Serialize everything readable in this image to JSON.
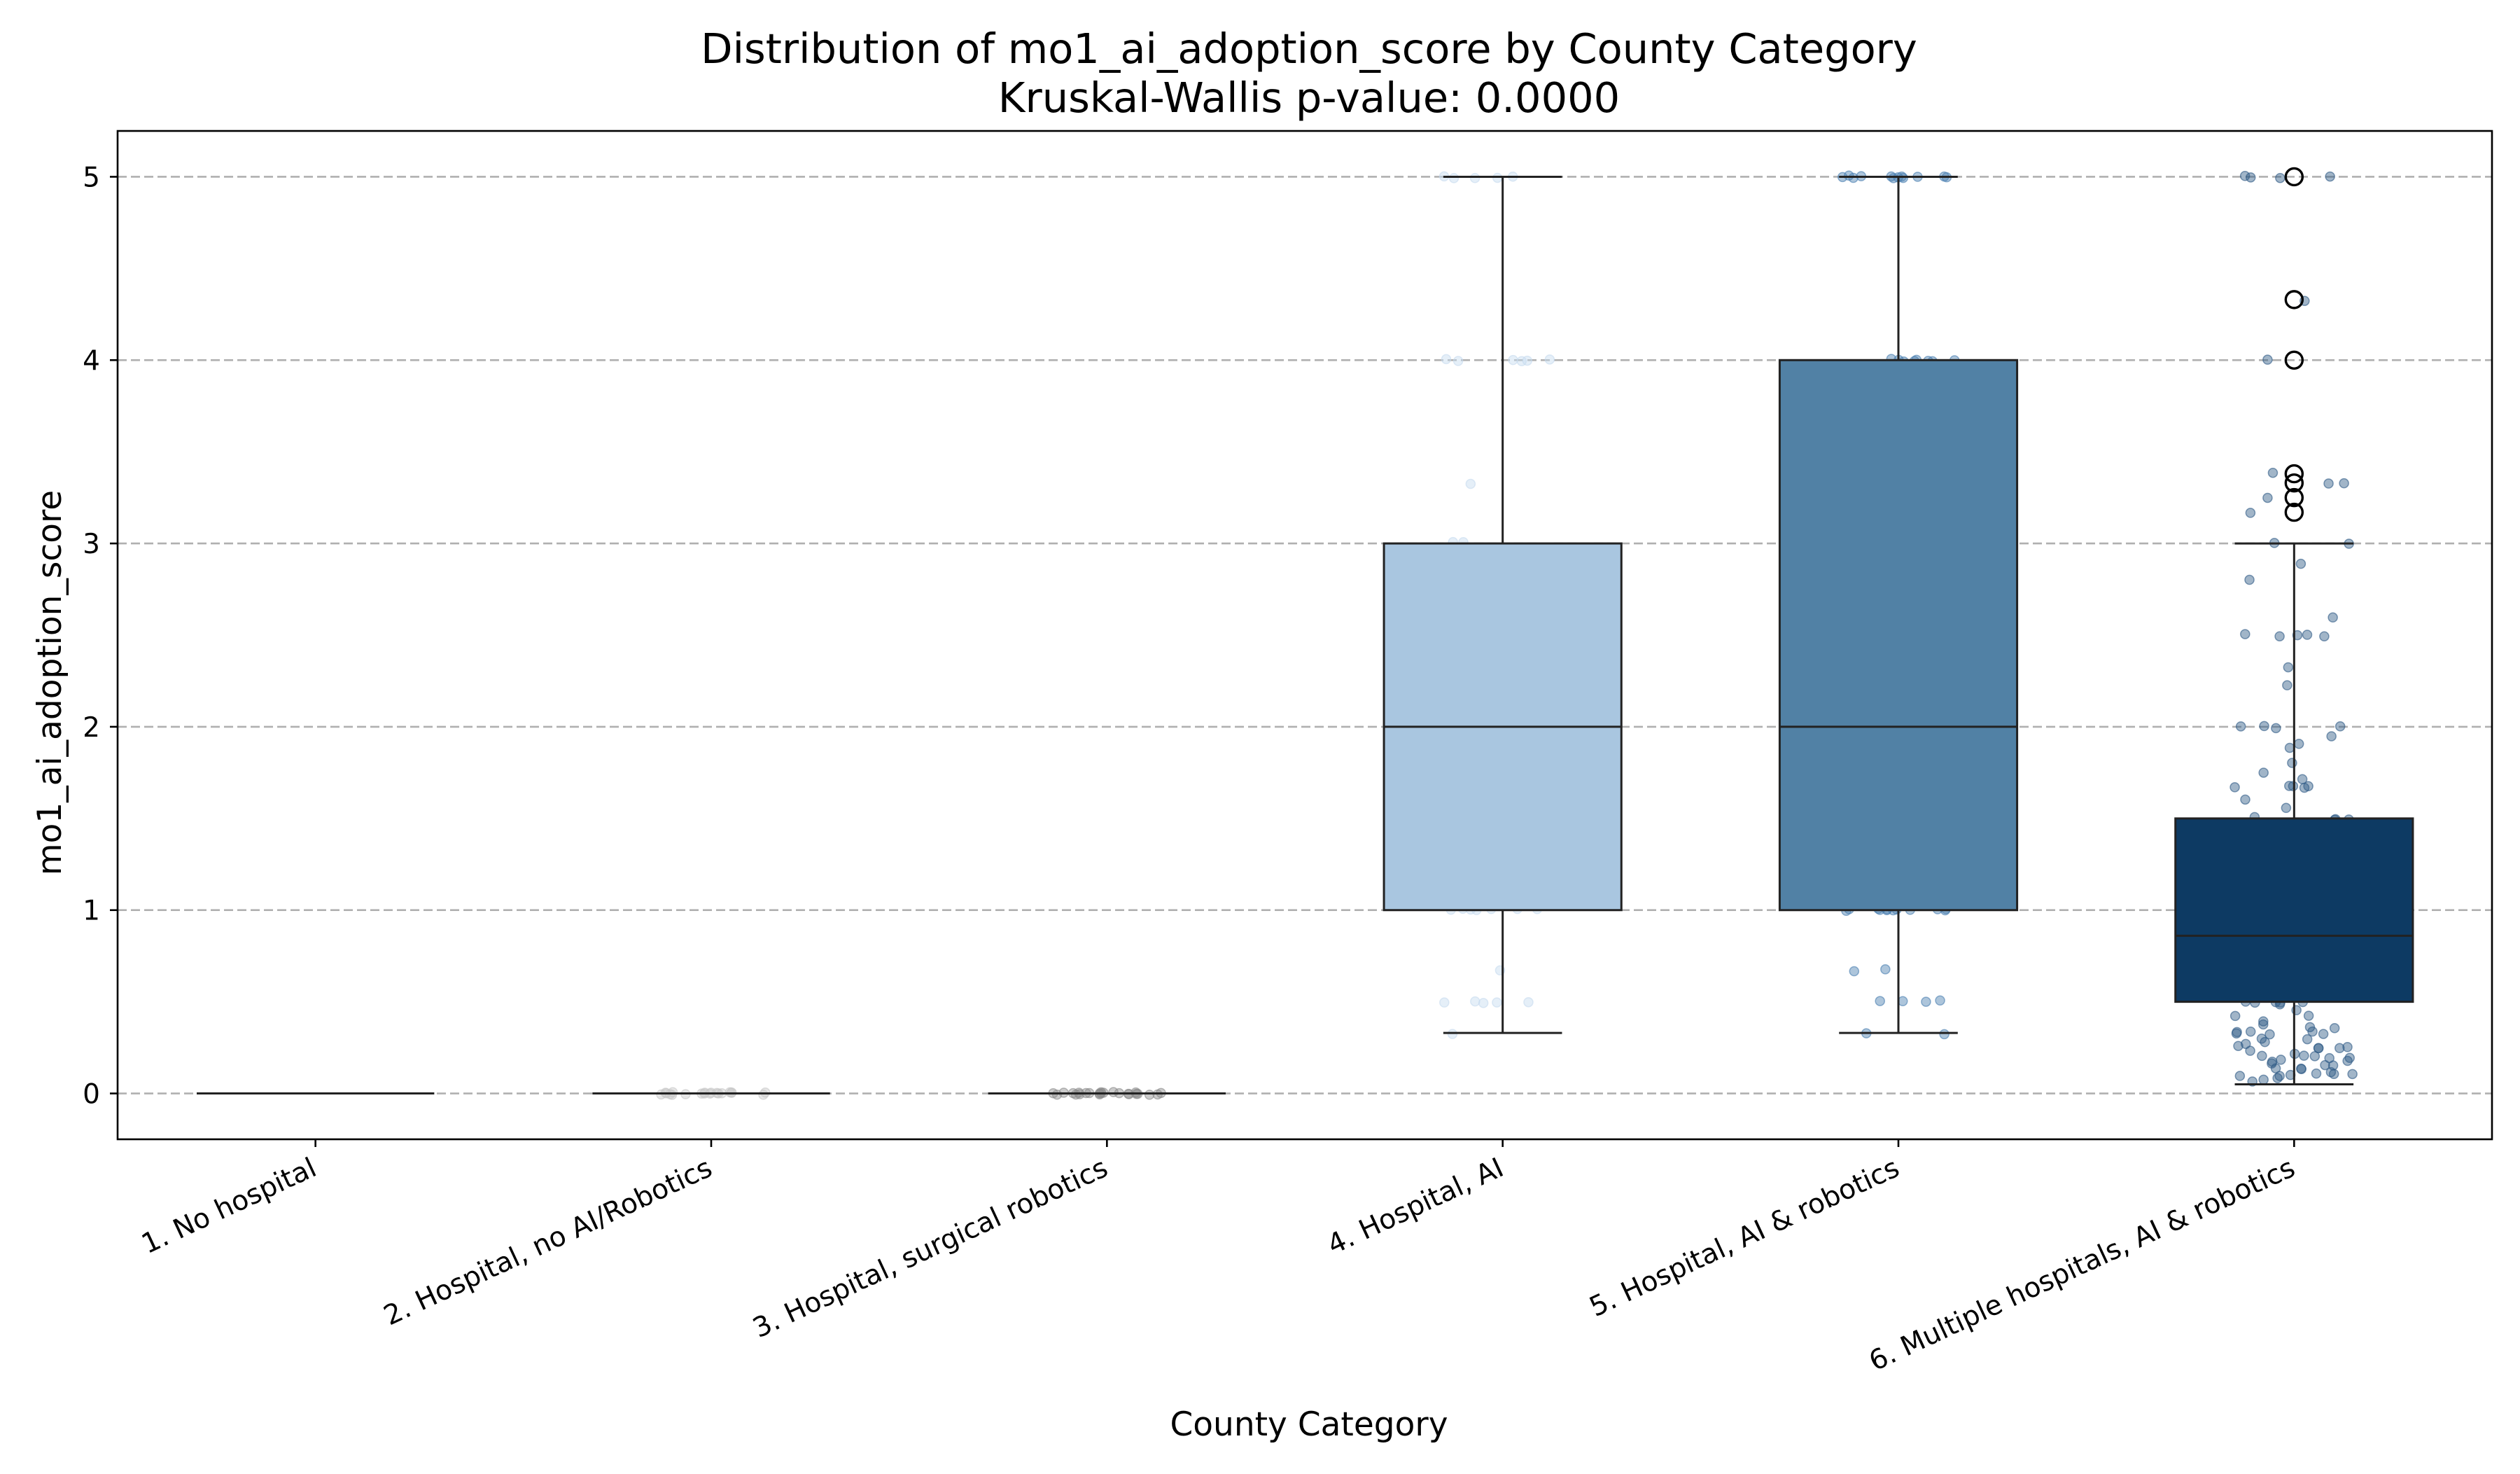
{
  "chart_data": {
    "type": "box",
    "title": "Distribution of mo1_ai_adoption_score by County Category",
    "subtitle": "Kruskal-Wallis p-value: 0.0000",
    "xlabel": "County Category",
    "ylabel": "mo1_ai_adoption_score",
    "ylim": [
      -0.25,
      5.25
    ],
    "yticks": [
      "0",
      "1",
      "2",
      "3",
      "4",
      "5"
    ],
    "grid": "horizontal dashed",
    "categories": [
      "1. No hospital",
      "2. Hospital, no AI/Robotics",
      "3. Hospital, surgical robotics",
      "4. Hospital, AI",
      "5. Hospital, AI & robotics",
      "6. Multiple hospitals, AI & robotics"
    ],
    "colors": [
      "#f7f7f7",
      "#cccccc",
      "#969696",
      "#a9c6e0",
      "#5181a5",
      "#0d3a63"
    ],
    "boxes": [
      {
        "whisker_low": 0,
        "q1": 0,
        "median": 0,
        "q3": 0,
        "whisker_high": 0,
        "outliers": []
      },
      {
        "whisker_low": 0,
        "q1": 0,
        "median": 0,
        "q3": 0,
        "whisker_high": 0,
        "outliers": []
      },
      {
        "whisker_low": 0,
        "q1": 0,
        "median": 0,
        "q3": 0,
        "whisker_high": 0,
        "outliers": []
      },
      {
        "whisker_low": 0.33,
        "q1": 1.0,
        "median": 2.0,
        "q3": 3.0,
        "whisker_high": 5.0,
        "outliers": []
      },
      {
        "whisker_low": 0.33,
        "q1": 1.0,
        "median": 2.0,
        "q3": 4.0,
        "whisker_high": 5.0,
        "outliers": []
      },
      {
        "whisker_low": 0.05,
        "q1": 0.5,
        "median": 0.86,
        "q3": 1.5,
        "whisker_high": 3.0,
        "outliers": [
          5.0,
          4.33,
          4.0,
          3.38,
          3.33,
          3.25,
          3.17
        ]
      }
    ],
    "points": [
      {
        "color": "#f7f7f7",
        "values": []
      },
      {
        "color": "#c8c8c8",
        "values": [
          0,
          0,
          0,
          0,
          0,
          0,
          0,
          0,
          0,
          0,
          0,
          0,
          0,
          0,
          0,
          0,
          0,
          0,
          0,
          0
        ]
      },
      {
        "color": "#8c8c8c",
        "values": [
          0,
          0,
          0,
          0,
          0,
          0,
          0,
          0,
          0,
          0,
          0,
          0,
          0,
          0,
          0,
          0,
          0,
          0,
          0,
          0,
          0,
          0,
          0,
          0
        ]
      },
      {
        "color": "#c6dbef",
        "values": [
          5,
          5,
          5,
          5,
          5,
          4,
          4,
          4,
          4,
          4,
          4,
          3.33,
          3,
          3,
          2,
          2,
          2,
          1,
          1,
          1,
          1,
          1,
          1,
          1,
          0.67,
          0.5,
          0.5,
          0.5,
          0.5,
          0.5,
          0.33
        ]
      },
      {
        "color": "#4a7fb0",
        "values": [
          5,
          5,
          5,
          5,
          5,
          5,
          5,
          5,
          5,
          5,
          5,
          5,
          4,
          4,
          4,
          4,
          4,
          4,
          4,
          4,
          3,
          3,
          3,
          2.5,
          2,
          2,
          2,
          2,
          2,
          2,
          2,
          1.5,
          1,
          1,
          1,
          1,
          1,
          1,
          1,
          1,
          1,
          1,
          1,
          1,
          0.67,
          0.67,
          0.5,
          0.5,
          0.5,
          0.5,
          0.33,
          0.33
        ]
      },
      {
        "color": "#2e5a85",
        "values": [
          5,
          5,
          5,
          5,
          4.33,
          4,
          3.38,
          3.33,
          3.33,
          3.25,
          3.17,
          3,
          3,
          2.89,
          2.8,
          2.6,
          2.5,
          2.5,
          2.5,
          2.5,
          2.5,
          2.33,
          2.22,
          2,
          2,
          2,
          2,
          1.95,
          1.9,
          1.88,
          1.8,
          1.75,
          1.71,
          1.67,
          1.67,
          1.67,
          1.67,
          1.67,
          1.6,
          1.56,
          1.5,
          1.5,
          1.5,
          1.5,
          1.45,
          1.4,
          1.38,
          1.33,
          1.33,
          1.3,
          1.25,
          1.22,
          1.2,
          1.17,
          1.14,
          1.1,
          1.08,
          1.05,
          1,
          1,
          1,
          1,
          1,
          1,
          0.97,
          0.95,
          0.92,
          0.9,
          0.88,
          0.86,
          0.83,
          0.8,
          0.8,
          0.78,
          0.75,
          0.75,
          0.72,
          0.7,
          0.67,
          0.67,
          0.67,
          0.65,
          0.62,
          0.6,
          0.58,
          0.56,
          0.55,
          0.53,
          0.5,
          0.5,
          0.5,
          0.5,
          0.5,
          0.48,
          0.45,
          0.43,
          0.42,
          0.4,
          0.38,
          0.36,
          0.35,
          0.33,
          0.33,
          0.33,
          0.33,
          0.33,
          0.32,
          0.3,
          0.29,
          0.28,
          0.27,
          0.26,
          0.25,
          0.25,
          0.25,
          0.24,
          0.23,
          0.22,
          0.21,
          0.2,
          0.2,
          0.2,
          0.19,
          0.18,
          0.17,
          0.17,
          0.17,
          0.16,
          0.15,
          0.14,
          0.14,
          0.13,
          0.12,
          0.11,
          0.11,
          0.1,
          0.1,
          0.1,
          0.09,
          0.08,
          0.07,
          0.06
        ]
      }
    ]
  }
}
